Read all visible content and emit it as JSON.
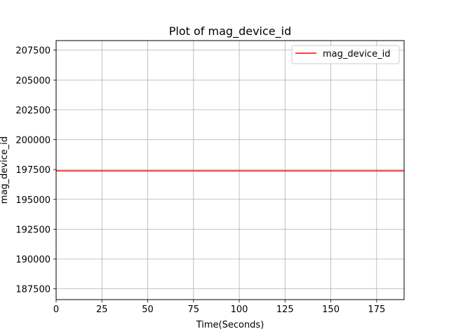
{
  "chart_data": {
    "type": "line",
    "title": "Plot of mag_device_id",
    "xlabel": "Time(Seconds)",
    "ylabel": "mag_device_id",
    "xlim": [
      0,
      190
    ],
    "ylim": [
      186600,
      208300
    ],
    "x_ticks": [
      0,
      25,
      50,
      75,
      100,
      125,
      150,
      175
    ],
    "y_ticks": [
      187500,
      190000,
      192500,
      195000,
      197500,
      200000,
      202500,
      205000,
      207500
    ],
    "grid": true,
    "legend_position": "top-right",
    "series": [
      {
        "name": "mag_device_id",
        "color": "#ff0000",
        "x": [
          0,
          190
        ],
        "y": [
          197384,
          197384
        ]
      }
    ]
  }
}
